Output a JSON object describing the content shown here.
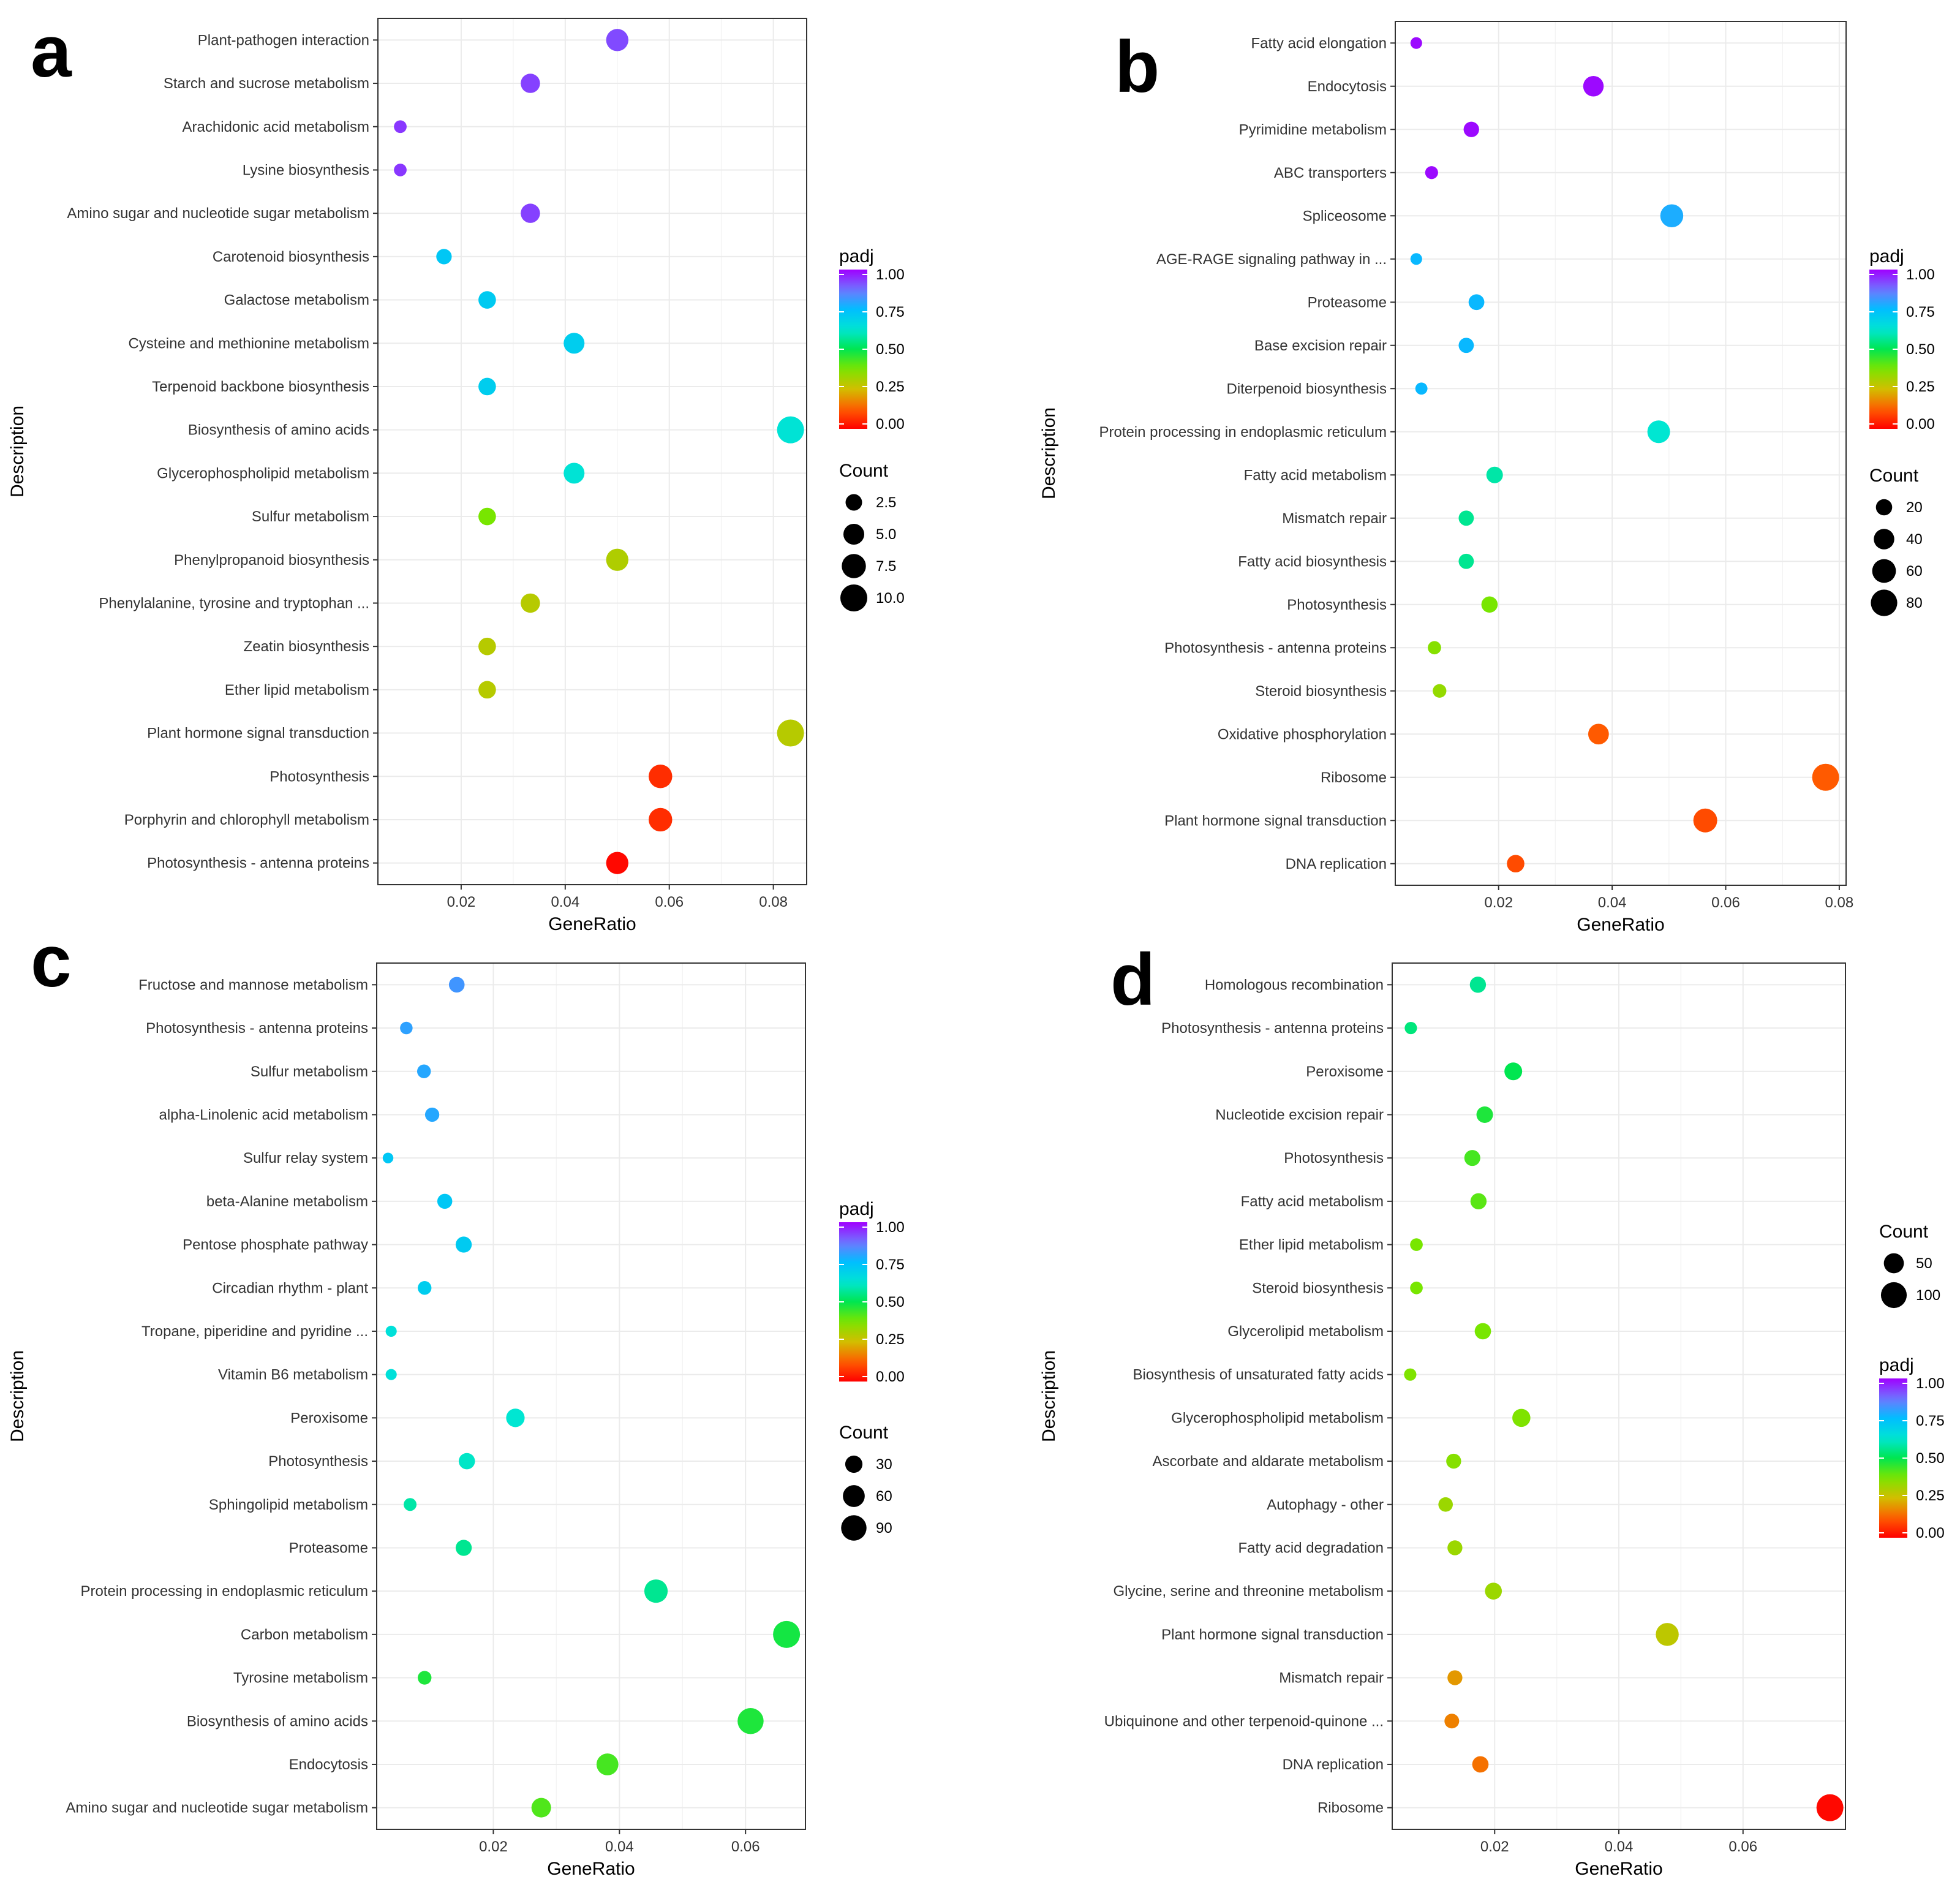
{
  "chart_data": [
    {
      "type": "scatter",
      "panel_letter": "a",
      "xlabel": "GeneRatio",
      "ylabel": "Description",
      "xlim": [
        0.004,
        0.0864
      ],
      "xticks": [
        0.02,
        0.04,
        0.06,
        0.08
      ],
      "xtick_labels": [
        "0.02",
        "0.04",
        "0.06",
        "0.08"
      ],
      "grid": true,
      "legend_order": [
        "padj",
        "Count"
      ],
      "color_legend": {
        "title": "padj",
        "ticks": [
          "1.00",
          "0.75",
          "0.50",
          "0.25",
          "0.00"
        ]
      },
      "size_legend": {
        "title": "Count",
        "values": [
          2.5,
          5.0,
          7.5,
          10.0
        ],
        "labels": [
          "2.5",
          "5.0",
          "7.5",
          "10.0"
        ],
        "max": 10
      },
      "categories": [
        "Plant-pathogen interaction",
        "Starch and sucrose metabolism",
        "Arachidonic acid metabolism",
        "Lysine biosynthesis",
        "Amino sugar and nucleotide sugar metabolism",
        "Carotenoid biosynthesis",
        "Galactose metabolism",
        "Cysteine and methionine metabolism",
        "Terpenoid backbone biosynthesis",
        "Biosynthesis of amino acids",
        "Glycerophospholipid metabolism",
        "Sulfur metabolism",
        "Phenylpropanoid biosynthesis",
        "Phenylalanine, tyrosine and tryptophan ...",
        "Zeatin biosynthesis",
        "Ether lipid metabolism",
        "Plant hormone signal transduction",
        "Photosynthesis",
        "Porphyrin and chlorophyll metabolism",
        "Photosynthesis - antenna proteins"
      ],
      "gene_ratio": [
        0.05,
        0.0333,
        0.0083,
        0.0083,
        0.0333,
        0.0167,
        0.025,
        0.0417,
        0.025,
        0.0833,
        0.0417,
        0.025,
        0.05,
        0.0333,
        0.025,
        0.025,
        0.0833,
        0.0583,
        0.0583,
        0.05
      ],
      "count": [
        6,
        4,
        1,
        1,
        4,
        2,
        3,
        5,
        3,
        10,
        5,
        3,
        6,
        4,
        3,
        3,
        10,
        7,
        7,
        6
      ],
      "padj": [
        0.92,
        0.93,
        0.94,
        0.94,
        0.93,
        0.72,
        0.71,
        0.7,
        0.7,
        0.63,
        0.63,
        0.38,
        0.3,
        0.29,
        0.29,
        0.29,
        0.29,
        0.06,
        0.06,
        0.01
      ]
    },
    {
      "type": "scatter",
      "panel_letter": "b",
      "xlabel": "GeneRatio",
      "ylabel": "Description",
      "xlim": [
        0.0018,
        0.0812
      ],
      "xticks": [
        0.02,
        0.04,
        0.06,
        0.08
      ],
      "xtick_labels": [
        "0.02",
        "0.04",
        "0.06",
        "0.08"
      ],
      "grid": true,
      "legend_order": [
        "padj",
        "Count"
      ],
      "color_legend": {
        "title": "padj",
        "ticks": [
          "1.00",
          "0.75",
          "0.50",
          "0.25",
          "0.00"
        ]
      },
      "size_legend": {
        "title": "Count",
        "values": [
          20,
          40,
          60,
          80
        ],
        "labels": [
          "20",
          "40",
          "60",
          "80"
        ],
        "max": 84
      },
      "categories": [
        "Fatty acid elongation",
        "Endocytosis",
        "Pyrimidine metabolism",
        "ABC transporters",
        "Spliceosome",
        "AGE-RAGE signaling pathway in ...",
        "Proteasome",
        "Base excision repair",
        "Diterpenoid biosynthesis",
        "Protein processing in endoplasmic reticulum",
        "Fatty acid metabolism",
        "Mismatch repair",
        "Fatty acid biosynthesis",
        "Photosynthesis",
        "Photosynthesis - antenna proteins",
        "Steroid biosynthesis",
        "Oxidative phosphorylation",
        "Ribosome",
        "Plant hormone signal transduction",
        "DNA replication"
      ],
      "gene_ratio": [
        0.0055,
        0.0367,
        0.0152,
        0.0082,
        0.0505,
        0.0055,
        0.0161,
        0.0143,
        0.0064,
        0.0482,
        0.0193,
        0.0143,
        0.0143,
        0.0184,
        0.0087,
        0.0096,
        0.0376,
        0.0776,
        0.0564,
        0.023
      ],
      "count": [
        6,
        40,
        17,
        9,
        55,
        6,
        18,
        16,
        7,
        53,
        21,
        16,
        16,
        20,
        10,
        11,
        41,
        84,
        61,
        25
      ],
      "padj": [
        0.99,
        0.99,
        0.99,
        0.99,
        0.78,
        0.76,
        0.76,
        0.76,
        0.76,
        0.62,
        0.58,
        0.56,
        0.56,
        0.38,
        0.36,
        0.34,
        0.12,
        0.12,
        0.1,
        0.1
      ]
    },
    {
      "type": "scatter",
      "panel_letter": "c",
      "xlabel": "GeneRatio",
      "ylabel": "Description",
      "xlim": [
        0.0015,
        0.0695
      ],
      "xticks": [
        0.02,
        0.04,
        0.06
      ],
      "xtick_labels": [
        "0.02",
        "0.04",
        "0.06"
      ],
      "grid": true,
      "legend_order": [
        "padj",
        "Count"
      ],
      "color_legend": {
        "title": "padj",
        "ticks": [
          "1.00",
          "0.75",
          "0.50",
          "0.25",
          "0.00"
        ]
      },
      "size_legend": {
        "title": "Count",
        "values": [
          30,
          60,
          90
        ],
        "labels": [
          "30",
          "60",
          "90"
        ],
        "max": 105
      },
      "categories": [
        "Fructose and mannose metabolism",
        "Photosynthesis - antenna proteins",
        "Sulfur metabolism",
        "alpha-Linolenic acid metabolism",
        "Sulfur relay system",
        "beta-Alanine metabolism",
        "Pentose phosphate pathway",
        "Circadian rhythm - plant",
        "Tropane, piperidine and pyridine ...",
        "Vitamin B6 metabolism",
        "Peroxisome",
        "Photosynthesis",
        "Sphingolipid metabolism",
        "Proteasome",
        "Protein processing in endoplasmic reticulum",
        "Carbon metabolism",
        "Tyrosine metabolism",
        "Biosynthesis of amino acids",
        "Endocytosis",
        "Amino sugar and nucleotide sugar metabolism"
      ],
      "gene_ratio": [
        0.0142,
        0.0062,
        0.009,
        0.0103,
        0.0033,
        0.0123,
        0.0153,
        0.0091,
        0.0038,
        0.0038,
        0.0235,
        0.0158,
        0.0068,
        0.0153,
        0.0458,
        0.0665,
        0.0091,
        0.0608,
        0.0381,
        0.0276
      ],
      "count": [
        22,
        10,
        14,
        16,
        5,
        19,
        24,
        14,
        6,
        6,
        37,
        25,
        11,
        24,
        72,
        105,
        14,
        96,
        60,
        44
      ],
      "padj": [
        0.82,
        0.8,
        0.79,
        0.79,
        0.72,
        0.72,
        0.71,
        0.7,
        0.64,
        0.64,
        0.62,
        0.61,
        0.58,
        0.56,
        0.56,
        0.48,
        0.47,
        0.47,
        0.43,
        0.42
      ]
    },
    {
      "type": "scatter",
      "panel_letter": "d",
      "xlabel": "GeneRatio",
      "ylabel": "Description",
      "xlim": [
        0.0035,
        0.0765
      ],
      "xticks": [
        0.02,
        0.04,
        0.06
      ],
      "xtick_labels": [
        "0.02",
        "0.04",
        "0.06"
      ],
      "grid": true,
      "legend_order": [
        "Count",
        "padj"
      ],
      "color_legend": {
        "title": "padj",
        "ticks": [
          "1.00",
          "0.75",
          "0.50",
          "0.25",
          "0.00"
        ]
      },
      "size_legend": {
        "title": "Count",
        "values": [
          50,
          100
        ],
        "labels": [
          "50",
          "100"
        ],
        "max": 112
      },
      "categories": [
        "Homologous recombination",
        "Photosynthesis - antenna proteins",
        "Peroxisome",
        "Nucleotide excision repair",
        "Photosynthesis",
        "Fatty acid metabolism",
        "Ether lipid metabolism",
        "Steroid biosynthesis",
        "Glycerolipid metabolism",
        "Biosynthesis of unsaturated fatty acids",
        "Glycerophospholipid metabolism",
        "Ascorbate and aldarate metabolism",
        "Autophagy - other",
        "Fatty acid degradation",
        "Glycine, serine and threonine metabolism",
        "Plant hormone signal transduction",
        "Mismatch repair",
        "Ubiquinone and other terpenoid-quinone ...",
        "DNA replication",
        "Ribosome"
      ],
      "gene_ratio": [
        0.0173,
        0.0065,
        0.023,
        0.0184,
        0.0164,
        0.0174,
        0.0074,
        0.0074,
        0.0181,
        0.0064,
        0.0243,
        0.0134,
        0.0121,
        0.0136,
        0.0198,
        0.0478,
        0.0136,
        0.0131,
        0.0177,
        0.074
      ],
      "count": [
        26,
        10,
        35,
        28,
        25,
        26,
        11,
        11,
        27,
        10,
        37,
        20,
        18,
        20,
        30,
        73,
        20,
        19,
        27,
        112
      ],
      "padj": [
        0.56,
        0.54,
        0.5,
        0.47,
        0.43,
        0.41,
        0.38,
        0.38,
        0.38,
        0.37,
        0.37,
        0.36,
        0.33,
        0.33,
        0.33,
        0.28,
        0.2,
        0.17,
        0.15,
        0.01
      ]
    }
  ]
}
